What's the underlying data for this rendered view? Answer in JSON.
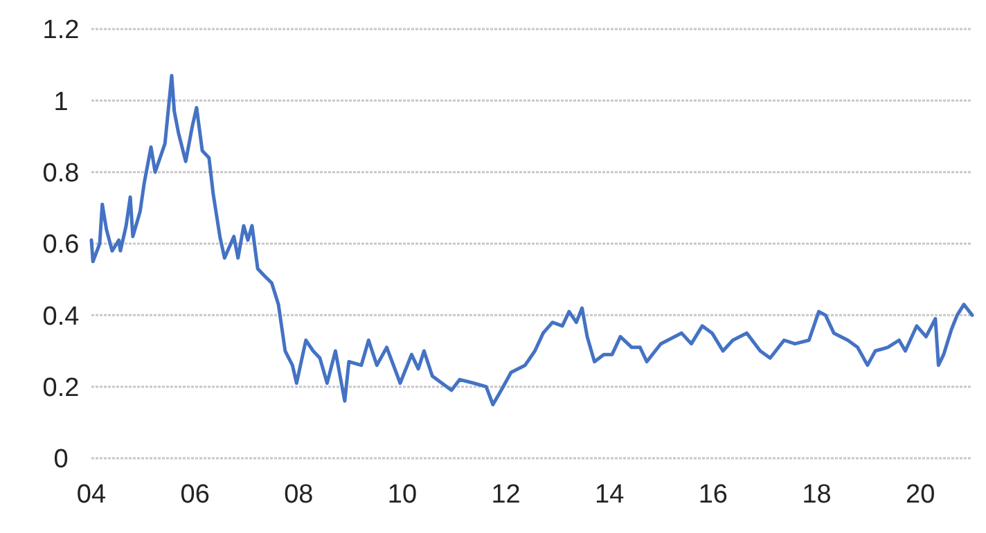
{
  "chart_data": {
    "type": "line",
    "xlim": [
      2004,
      2021
    ],
    "ylim": [
      0,
      1.2
    ],
    "xticks": [
      {
        "value": 2004,
        "label": "04"
      },
      {
        "value": 2006,
        "label": "06"
      },
      {
        "value": 2008,
        "label": "08"
      },
      {
        "value": 2010,
        "label": "10"
      },
      {
        "value": 2012,
        "label": "12"
      },
      {
        "value": 2014,
        "label": "14"
      },
      {
        "value": 2016,
        "label": "16"
      },
      {
        "value": 2018,
        "label": "18"
      },
      {
        "value": 2020,
        "label": "20"
      }
    ],
    "yticks": [
      0,
      0.2,
      0.4,
      0.6,
      0.8,
      1,
      1.2
    ],
    "grid": "y",
    "marker": "none",
    "line_style": "solid",
    "series": [
      {
        "color": "#4472c4",
        "x": [
          2004.0,
          2004.03,
          2004.16,
          2004.21,
          2004.29,
          2004.4,
          2004.53,
          2004.56,
          2004.67,
          2004.75,
          2004.8,
          2004.94,
          2005.02,
          2005.15,
          2005.23,
          2005.42,
          2005.55,
          2005.6,
          2005.68,
          2005.82,
          2005.95,
          2006.03,
          2006.14,
          2006.27,
          2006.35,
          2006.48,
          2006.57,
          2006.75,
          2006.83,
          2006.94,
          2007.02,
          2007.1,
          2007.21,
          2007.34,
          2007.48,
          2007.61,
          2007.74,
          2007.88,
          2007.96,
          2008.14,
          2008.28,
          2008.41,
          2008.55,
          2008.71,
          2008.89,
          2008.97,
          2009.21,
          2009.35,
          2009.51,
          2009.7,
          2009.96,
          2010.18,
          2010.31,
          2010.42,
          2010.58,
          2010.95,
          2011.11,
          2011.38,
          2011.62,
          2011.75,
          2011.91,
          2012.1,
          2012.37,
          2012.56,
          2012.72,
          2012.9,
          2013.09,
          2013.22,
          2013.36,
          2013.47,
          2013.57,
          2013.71,
          2013.89,
          2014.05,
          2014.21,
          2014.43,
          2014.59,
          2014.72,
          2014.99,
          2015.39,
          2015.58,
          2015.79,
          2015.98,
          2016.19,
          2016.38,
          2016.65,
          2016.91,
          2017.1,
          2017.37,
          2017.58,
          2017.85,
          2018.04,
          2018.17,
          2018.33,
          2018.6,
          2018.79,
          2018.98,
          2019.13,
          2019.37,
          2019.59,
          2019.71,
          2019.93,
          2020.11,
          2020.29,
          2020.35,
          2020.45,
          2020.6,
          2020.71,
          2020.84,
          2021.0
        ],
        "values": [
          0.61,
          0.55,
          0.6,
          0.71,
          0.64,
          0.58,
          0.61,
          0.58,
          0.65,
          0.73,
          0.62,
          0.69,
          0.77,
          0.87,
          0.8,
          0.88,
          1.07,
          0.97,
          0.91,
          0.83,
          0.93,
          0.98,
          0.86,
          0.84,
          0.74,
          0.62,
          0.56,
          0.62,
          0.56,
          0.65,
          0.61,
          0.65,
          0.53,
          0.51,
          0.49,
          0.43,
          0.3,
          0.26,
          0.21,
          0.33,
          0.3,
          0.28,
          0.21,
          0.3,
          0.16,
          0.27,
          0.26,
          0.33,
          0.26,
          0.31,
          0.21,
          0.29,
          0.25,
          0.3,
          0.23,
          0.19,
          0.22,
          0.21,
          0.2,
          0.15,
          0.19,
          0.24,
          0.26,
          0.3,
          0.35,
          0.38,
          0.37,
          0.41,
          0.38,
          0.42,
          0.34,
          0.27,
          0.29,
          0.29,
          0.34,
          0.31,
          0.31,
          0.27,
          0.32,
          0.35,
          0.32,
          0.37,
          0.35,
          0.3,
          0.33,
          0.35,
          0.3,
          0.28,
          0.33,
          0.32,
          0.33,
          0.41,
          0.4,
          0.35,
          0.33,
          0.31,
          0.26,
          0.3,
          0.31,
          0.33,
          0.3,
          0.37,
          0.34,
          0.39,
          0.26,
          0.29,
          0.36,
          0.4,
          0.43,
          0.4
        ]
      }
    ]
  }
}
